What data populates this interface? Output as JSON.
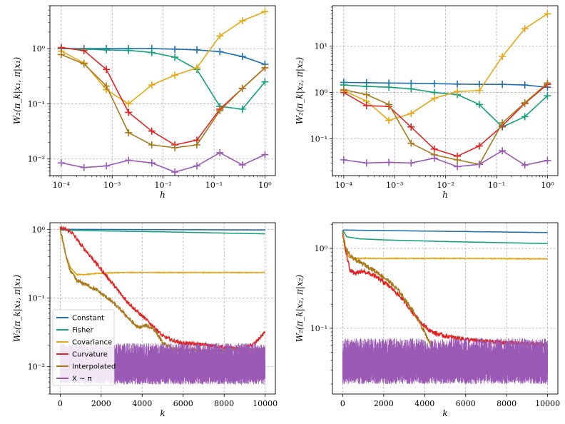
{
  "colors": {
    "Constant": "#1f6fb0",
    "Fisher": "#12a07a",
    "Covariance": "#e6a716",
    "Curvature": "#e02424",
    "Interpolated": "#a87a1c",
    "X ~ π": "#9b59b6"
  },
  "legend": {
    "placement": "lower-left",
    "entries": [
      "Constant",
      "Fisher",
      "Covariance",
      "Curvature",
      "Interpolated",
      "X ~ π"
    ]
  },
  "chart_data": [
    {
      "type": "line",
      "panel": "top-left",
      "xscale": "log",
      "yscale": "log",
      "xlabel": "h",
      "ylabel": "W₂(π_k|x₁, π|x₁)",
      "xlim": [
        6e-05,
        1.6
      ],
      "ylim": [
        0.005,
        6
      ],
      "xticks": [
        "10⁻⁴",
        "10⁻³",
        "10⁻²",
        "10⁻¹",
        "10⁰"
      ],
      "yticks": [
        "10⁻²",
        "10⁻¹",
        "10⁰"
      ],
      "grid": true,
      "x": [
        0.0001,
        0.00028,
        0.00077,
        0.0021,
        0.006,
        0.017,
        0.046,
        0.13,
        0.36,
        1.0
      ],
      "series": [
        {
          "name": "Constant",
          "values": [
            1.0,
            1.0,
            1.0,
            1.0,
            1.0,
            0.98,
            0.95,
            0.88,
            0.72,
            0.52
          ]
        },
        {
          "name": "Fisher",
          "values": [
            1.0,
            0.98,
            0.95,
            0.93,
            0.85,
            0.7,
            0.42,
            0.09,
            0.08,
            0.25
          ]
        },
        {
          "name": "Covariance",
          "values": [
            0.9,
            0.55,
            0.18,
            0.1,
            0.22,
            0.33,
            0.45,
            1.7,
            3.2,
            4.7
          ]
        },
        {
          "name": "Curvature",
          "values": [
            1.05,
            0.92,
            0.42,
            0.07,
            0.032,
            0.018,
            0.022,
            0.08,
            0.19,
            0.45
          ]
        },
        {
          "name": "Interpolated",
          "values": [
            0.78,
            0.53,
            0.21,
            0.03,
            0.018,
            0.016,
            0.018,
            0.075,
            0.19,
            0.45
          ]
        },
        {
          "name": "X ~ π",
          "values": [
            0.0085,
            0.007,
            0.0075,
            0.0095,
            0.0085,
            0.0058,
            0.0075,
            0.013,
            0.0078,
            0.012
          ]
        }
      ]
    },
    {
      "type": "line",
      "panel": "top-right",
      "xscale": "log",
      "yscale": "log",
      "xlabel": "h",
      "ylabel": "W₂(π_k|x₂, π|x₂)",
      "xlim": [
        6e-05,
        1.6
      ],
      "ylim": [
        0.016,
        75
      ],
      "xticks": [
        "10⁻⁴",
        "10⁻³",
        "10⁻²",
        "10⁻¹",
        "10⁰"
      ],
      "yticks": [
        "10⁻¹",
        "10⁰",
        "10¹"
      ],
      "grid": true,
      "x": [
        0.0001,
        0.00028,
        0.00077,
        0.0021,
        0.006,
        0.017,
        0.046,
        0.13,
        0.36,
        1.0
      ],
      "series": [
        {
          "name": "Constant",
          "values": [
            1.65,
            1.63,
            1.6,
            1.58,
            1.55,
            1.52,
            1.5,
            1.5,
            1.45,
            1.3
          ]
        },
        {
          "name": "Fisher",
          "values": [
            1.45,
            1.35,
            1.3,
            1.2,
            1.0,
            0.9,
            0.55,
            0.18,
            0.3,
            0.85
          ]
        },
        {
          "name": "Covariance",
          "values": [
            1.1,
            0.65,
            0.25,
            0.35,
            0.75,
            1.05,
            1.1,
            6.0,
            24.0,
            50.0
          ]
        },
        {
          "name": "Curvature",
          "values": [
            1.0,
            0.52,
            0.5,
            0.18,
            0.06,
            0.042,
            0.07,
            0.19,
            0.58,
            1.5
          ]
        },
        {
          "name": "Interpolated",
          "values": [
            1.15,
            0.9,
            0.55,
            0.08,
            0.045,
            0.035,
            0.028,
            0.22,
            0.6,
            1.6
          ]
        },
        {
          "name": "X ~ π",
          "values": [
            0.035,
            0.03,
            0.031,
            0.03,
            0.038,
            0.025,
            0.028,
            0.055,
            0.027,
            0.034
          ]
        }
      ]
    },
    {
      "type": "line",
      "panel": "bottom-left",
      "xscale": "linear",
      "yscale": "log",
      "xlabel": "k",
      "ylabel": "W₂(π_k|x₁, π|x₁)",
      "xlim": [
        -500,
        10500
      ],
      "ylim": [
        0.004,
        1.25
      ],
      "xticks": [
        "0",
        "2000",
        "4000",
        "6000",
        "8000",
        "10000"
      ],
      "yticks": [
        "10⁻²",
        "10⁻¹",
        "10⁰"
      ],
      "grid": true,
      "series": [
        {
          "name": "Constant",
          "k": [
            0,
            10000
          ],
          "values": [
            1.0,
            0.98
          ]
        },
        {
          "name": "Fisher",
          "k": [
            0,
            2000,
            5000,
            10000
          ],
          "values": [
            0.98,
            0.95,
            0.92,
            0.86
          ]
        },
        {
          "name": "Covariance",
          "k": [
            0,
            100,
            300,
            500,
            800,
            1200,
            2000,
            3000,
            5000,
            10000
          ],
          "values": [
            1.0,
            0.7,
            0.4,
            0.28,
            0.22,
            0.22,
            0.23,
            0.235,
            0.235,
            0.235
          ]
        },
        {
          "name": "Curvature",
          "k": [
            0,
            300,
            600,
            1000,
            1500,
            2000,
            2500,
            3000,
            3500,
            4000,
            4500,
            5000,
            5500,
            6000,
            7000,
            8000,
            9000,
            9500,
            10000
          ],
          "values": [
            1.05,
            1.0,
            0.88,
            0.6,
            0.4,
            0.26,
            0.17,
            0.11,
            0.075,
            0.055,
            0.04,
            0.028,
            0.024,
            0.022,
            0.021,
            0.019,
            0.018,
            0.022,
            0.032
          ]
        },
        {
          "name": "Interpolated",
          "k": [
            0,
            150,
            300,
            500,
            800,
            1200,
            1800,
            2500,
            3000,
            3500,
            3800,
            4200,
            4600,
            5000,
            5500,
            6000,
            7000,
            8000,
            9000,
            10000
          ],
          "values": [
            1.0,
            0.65,
            0.38,
            0.25,
            0.18,
            0.16,
            0.13,
            0.09,
            0.065,
            0.045,
            0.037,
            0.04,
            0.035,
            0.022,
            0.018,
            0.017,
            0.017,
            0.017,
            0.018,
            0.017
          ]
        },
        {
          "name": "X ~ π",
          "k": [
            0,
            10000
          ],
          "values": [
            0.011,
            0.011
          ],
          "band": [
            0.0055,
            0.022
          ]
        }
      ]
    },
    {
      "type": "line",
      "panel": "bottom-right",
      "xscale": "linear",
      "yscale": "log",
      "xlabel": "k",
      "ylabel": "W₂(π_k|x₂, π|x₂)",
      "xlim": [
        -500,
        10500
      ],
      "ylim": [
        0.015,
        2.1
      ],
      "xticks": [
        "0",
        "2000",
        "4000",
        "6000",
        "8000",
        "10000"
      ],
      "yticks": [
        "10⁻¹",
        "10⁰"
      ],
      "grid": true,
      "series": [
        {
          "name": "Constant",
          "k": [
            0,
            10000
          ],
          "values": [
            1.7,
            1.58
          ]
        },
        {
          "name": "Fisher",
          "k": [
            0,
            200,
            800,
            2000,
            5000,
            10000
          ],
          "values": [
            1.7,
            1.4,
            1.32,
            1.28,
            1.22,
            1.15
          ]
        },
        {
          "name": "Covariance",
          "k": [
            0,
            100,
            300,
            600,
            1000,
            3000,
            6000,
            10000
          ],
          "values": [
            1.6,
            1.0,
            0.78,
            0.75,
            0.75,
            0.75,
            0.75,
            0.74
          ]
        },
        {
          "name": "Curvature",
          "k": [
            0,
            150,
            350,
            600,
            1000,
            1500,
            2000,
            2500,
            3000,
            3400,
            3800,
            4200,
            4600,
            5000,
            5500,
            6500,
            8000,
            10000
          ],
          "values": [
            1.6,
            0.9,
            0.55,
            0.48,
            0.52,
            0.46,
            0.38,
            0.3,
            0.22,
            0.16,
            0.12,
            0.095,
            0.085,
            0.08,
            0.076,
            0.07,
            0.066,
            0.062
          ]
        },
        {
          "name": "Interpolated",
          "k": [
            0,
            150,
            400,
            800,
            1300,
            1800,
            2300,
            2800,
            3200,
            3600,
            3900,
            4200,
            4500,
            5000
          ],
          "values": [
            1.6,
            1.0,
            0.78,
            0.68,
            0.58,
            0.48,
            0.38,
            0.28,
            0.2,
            0.14,
            0.1,
            0.07,
            0.05,
            0.04
          ]
        },
        {
          "name": "X ~ π",
          "k": [
            0,
            10000
          ],
          "values": [
            0.033,
            0.033
          ],
          "band": [
            0.02,
            0.075
          ]
        }
      ]
    }
  ]
}
